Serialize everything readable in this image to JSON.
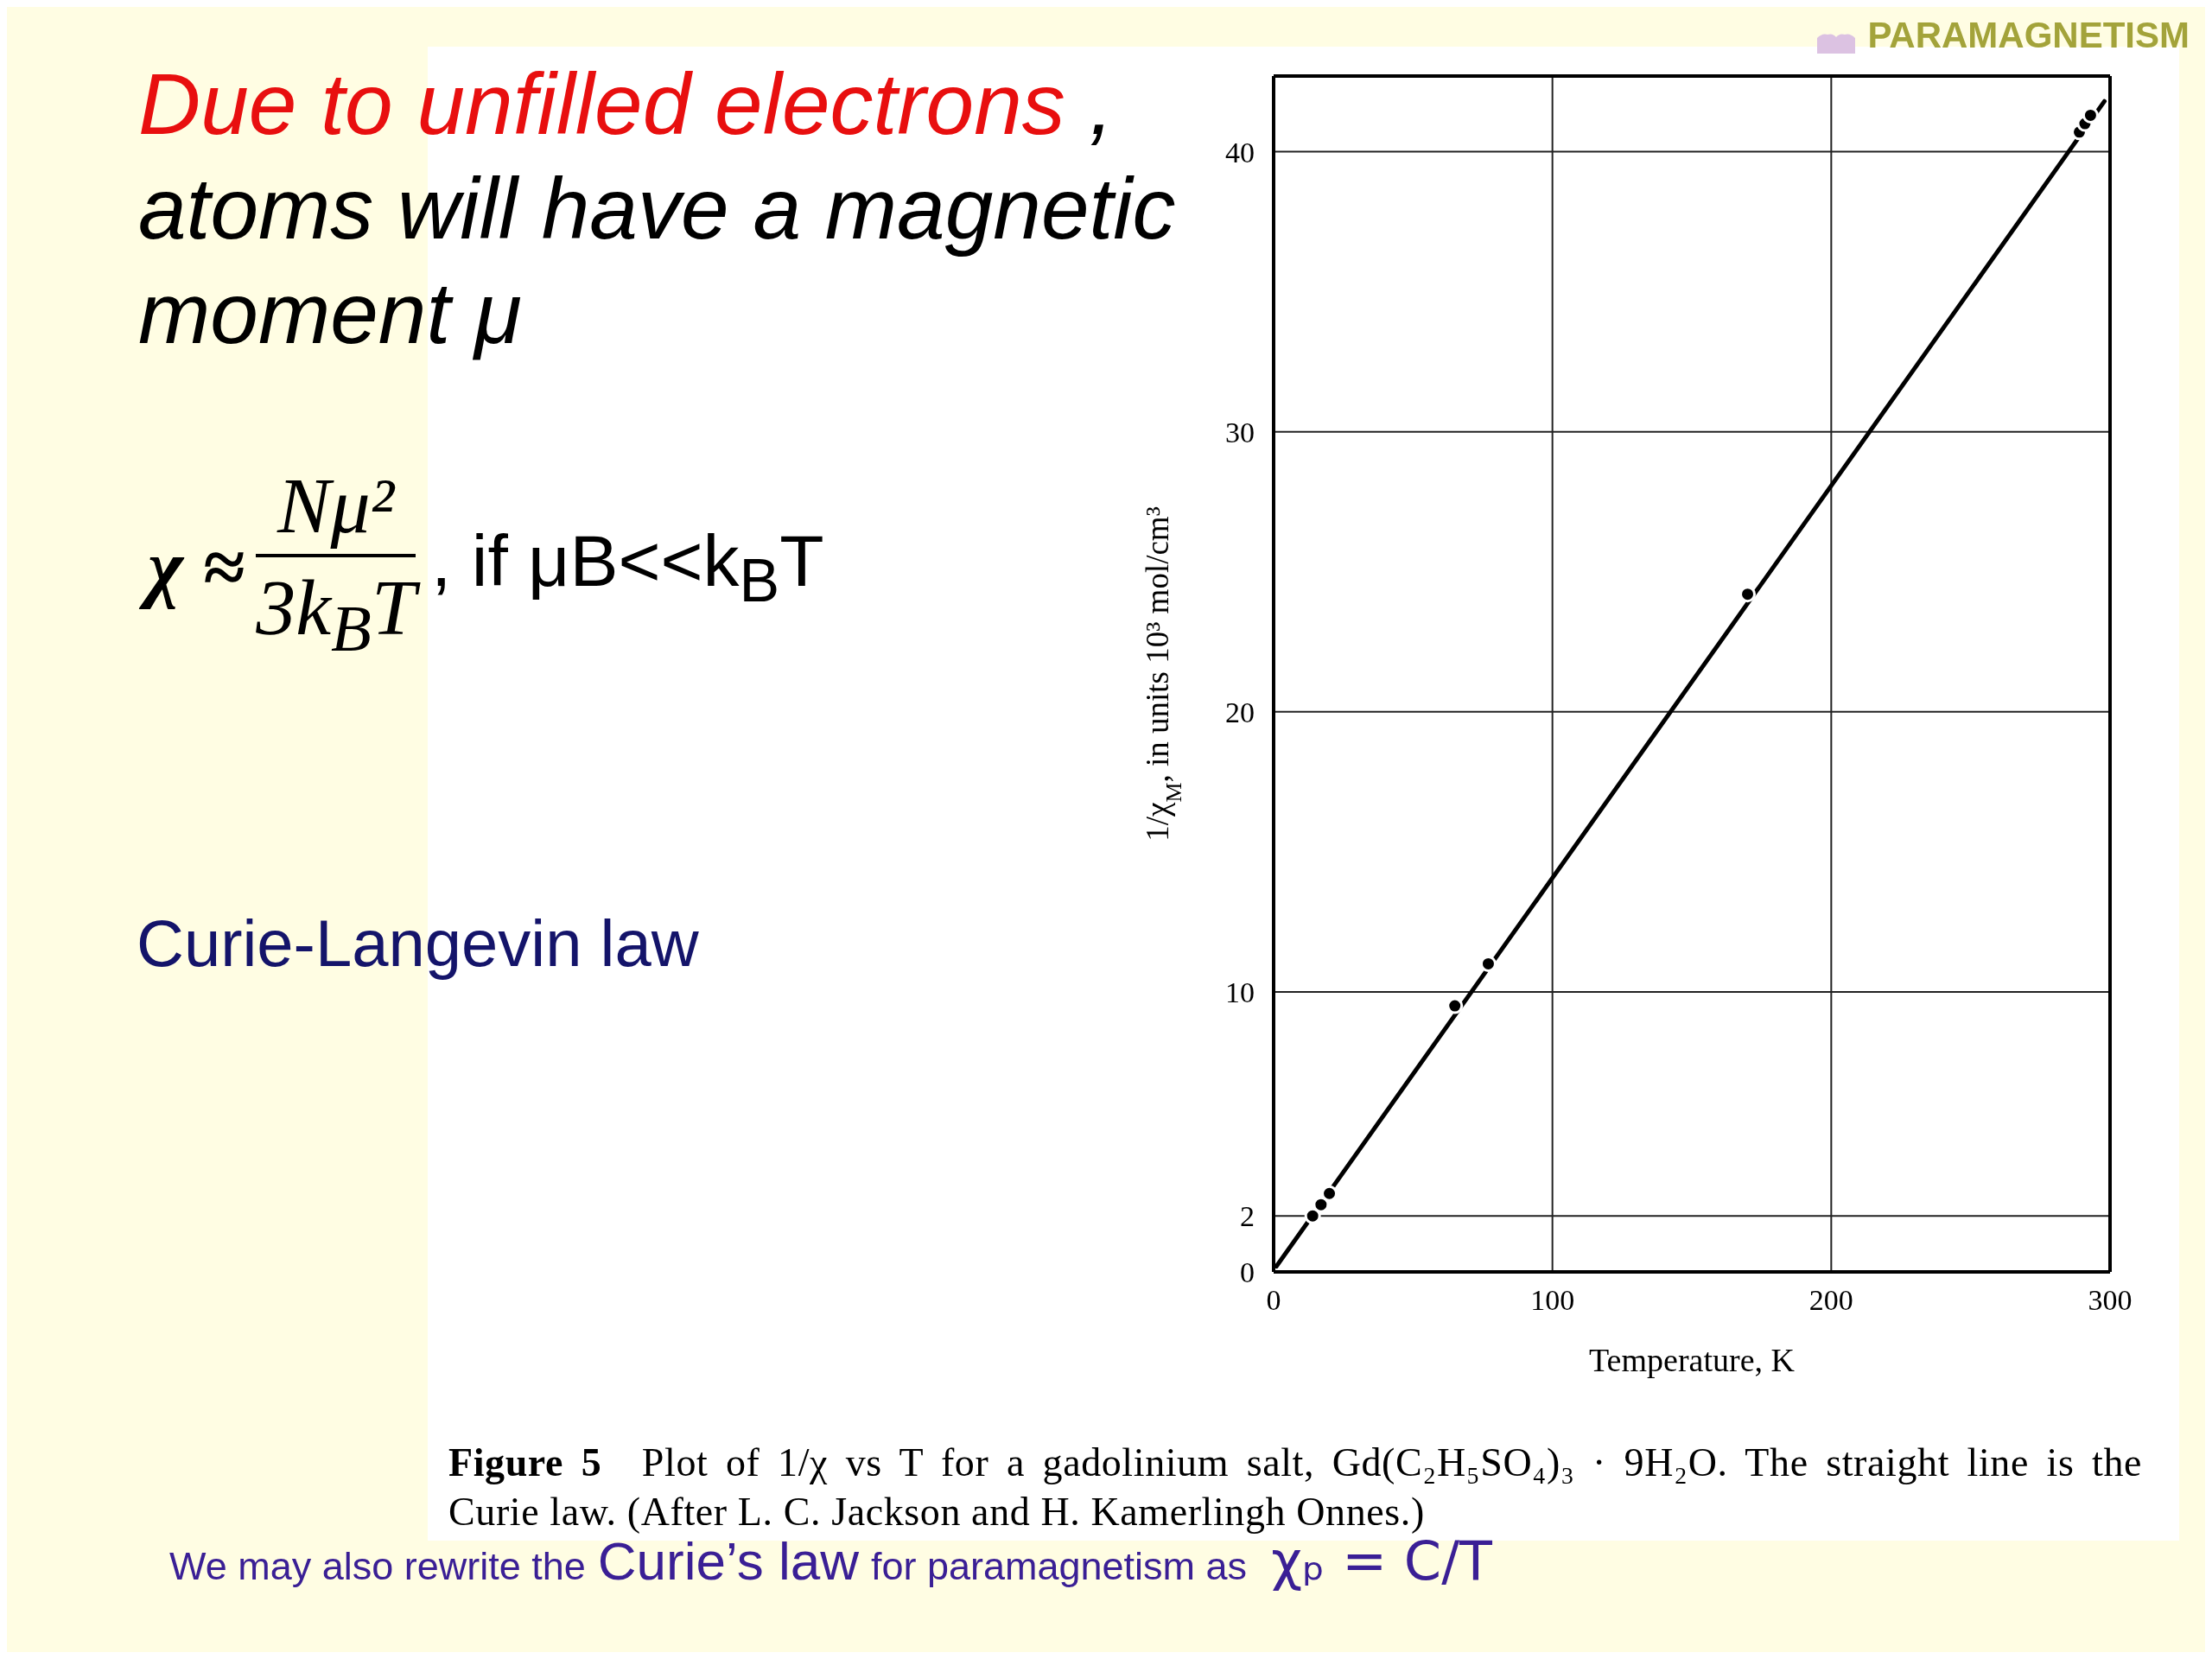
{
  "chart_data": {
    "type": "scatter",
    "title": "PARAMAGNETISM",
    "xlabel": "Temperature, K",
    "ylabel": "1/χ$_{M}$, in units 10³ mol/cm³",
    "x": [
      14,
      17,
      20,
      65,
      77,
      170,
      289,
      291,
      293
    ],
    "series": [
      {
        "type": "line",
        "x": [
          1,
          298
        ],
        "values": [
          0.2,
          41.8
        ],
        "color": "#000000",
        "line_style": "solid"
      },
      {
        "values": [
          2.0,
          2.4,
          2.8,
          9.5,
          11.0,
          24.2,
          40.7,
          41.0,
          41.3
        ],
        "color": "#000000",
        "marker": "circle"
      }
    ],
    "xlim": [
      0,
      300
    ],
    "ylim": [
      0,
      42.7
    ],
    "xticks": [
      0,
      100,
      200,
      300
    ],
    "yticks": [
      0,
      2,
      10,
      20,
      30,
      40
    ],
    "grid": true,
    "annotations": [
      "Due to unfilled electrons",
      ",",
      "atoms will have a magnetic moment μ",
      "χ ≈",
      "Nμ²",
      "3k$_{B}$T",
      ", if μB<<k$_{B}$T",
      "Curie-Langevin law",
      "Figure 5",
      "Plot of 1/χ vs T for a gadolinium salt, Gd(C₂H₅SO₄)₃ · 9H₂O. The straight line is the",
      "Curie law. (After L. C. Jackson and H. Kamerlingh Onnes.)",
      "We may also rewrite the",
      "Curie’s law",
      "for paramagnetism as",
      "χₚ = C/T"
    ]
  }
}
